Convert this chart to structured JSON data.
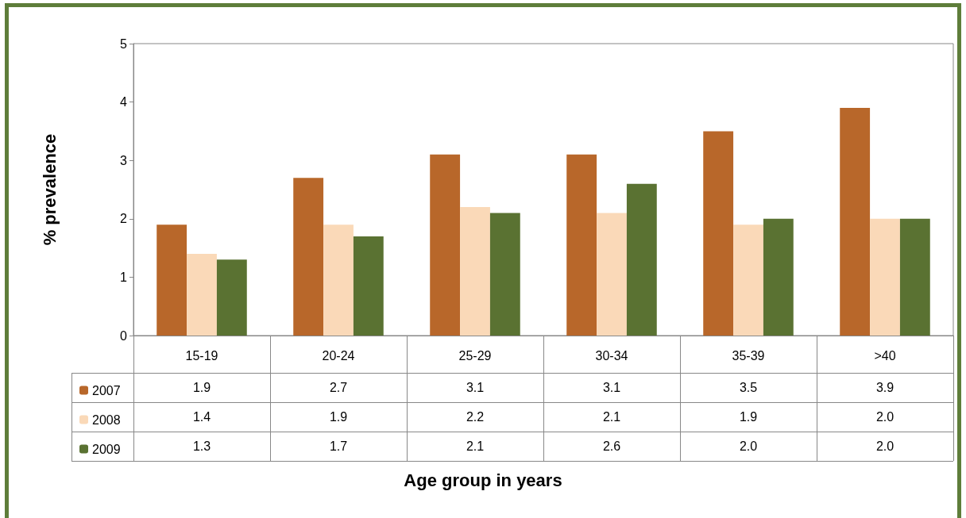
{
  "chart_data": {
    "type": "bar",
    "annotations": [
      "Age group in years"
    ],
    "ylabel": "% prevalence",
    "categories": [
      "15-19",
      "20-24",
      "25-29",
      "30-34",
      "35-39",
      ">40"
    ],
    "series": [
      {
        "name": "2007",
        "color": "#b8672a",
        "values": [
          1.9,
          2.7,
          3.1,
          3.1,
          3.5,
          3.9
        ],
        "value_labels": [
          "1.9",
          "2.7",
          "3.1",
          "3.1",
          "3.5",
          "3.9"
        ]
      },
      {
        "name": "2008",
        "color": "#fad9b8",
        "values": [
          1.4,
          1.9,
          2.2,
          2.1,
          1.9,
          2.0
        ],
        "value_labels": [
          "1.4",
          "1.9",
          "2.2",
          "2.1",
          "1.9",
          "2.0"
        ]
      },
      {
        "name": "2009",
        "color": "#5a7232",
        "values": [
          1.3,
          1.7,
          2.1,
          2.6,
          2.0,
          2.0
        ],
        "value_labels": [
          "1.3",
          "1.7",
          "2.1",
          "2.6",
          "2.0",
          "2.0"
        ]
      }
    ],
    "ylim": [
      0,
      5
    ],
    "yticks": [
      0,
      1,
      2,
      3,
      4,
      5
    ],
    "grid": false,
    "legend": "bottom left"
  }
}
